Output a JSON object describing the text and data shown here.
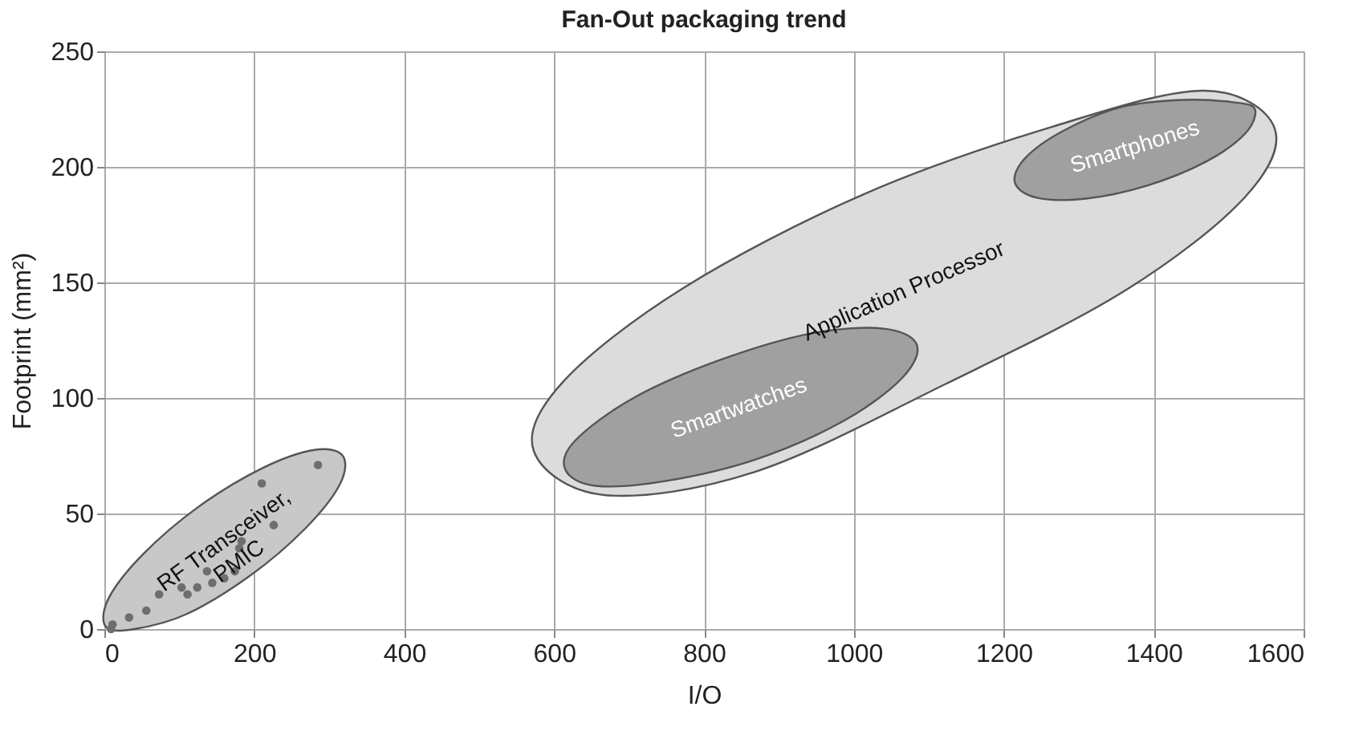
{
  "chart_data": {
    "type": "scatter",
    "title": "Fan-Out packaging trend",
    "xlabel": "I/O",
    "ylabel": "Footprint (mm²)",
    "xlim": [
      0,
      1600
    ],
    "xticks": [
      0,
      200,
      400,
      600,
      800,
      1000,
      1200,
      1400,
      1600
    ],
    "ylim": [
      0,
      250
    ],
    "yticks": [
      0,
      50,
      100,
      150,
      200,
      250
    ],
    "grid": true,
    "series": [
      {
        "name": "RF Transceiver,\nPMIC",
        "type": "area",
        "color": "#c8c8c8",
        "x": [
          318,
          314,
          268,
          194,
          110,
          40,
          2,
          6,
          52,
          126,
          210,
          280
        ],
        "values": [
          75,
          62.5,
          43.5,
          23,
          6.5,
          0,
          1,
          13.5,
          32.5,
          53,
          69.5,
          77.5
        ]
      },
      {
        "name": "Application Processor",
        "type": "area",
        "color": "#dcdcdc",
        "x": [
          1561,
          1522,
          1362,
          1122,
          868,
          667,
          573,
          612,
          772,
          1012,
          1266,
          1467
        ],
        "values": [
          217,
          187,
          146.5,
          106,
          68,
          58,
          77,
          107,
          147.5,
          188,
          217.5,
          233
        ]
      },
      {
        "name": "Smartwatches",
        "type": "area",
        "color": "#a0a0a0",
        "x": [
          1084,
          1064,
          986,
          870,
          748,
          655,
          615,
          628,
          706,
          822,
          944,
          1040
        ],
        "values": [
          123,
          108.5,
          90,
          73.5,
          64,
          62,
          69,
          81.5,
          100,
          116.5,
          128,
          130
        ]
      },
      {
        "name": "Smartphones",
        "type": "area",
        "color": "#a0a0a0",
        "x": [
          1535,
          1522,
          1470,
          1392,
          1310,
          1245,
          1215,
          1228,
          1280,
          1358,
          1440,
          1505
        ],
        "values": [
          225,
          214.4,
          202.3,
          192,
          186.3,
          186.6,
          193,
          203.6,
          215.7,
          226,
          229,
          228
        ]
      },
      {
        "color": "#6e6e6e",
        "marker": "circle",
        "x": [
          9,
          11,
          33,
          56,
          73,
          103,
          111,
          124,
          137,
          144,
          160,
          174,
          180,
          183,
          210,
          226,
          285
        ],
        "values": [
          0,
          2,
          5,
          8,
          15,
          18,
          15,
          18,
          25,
          20,
          22,
          25,
          35,
          38,
          63,
          45,
          71
        ]
      }
    ]
  }
}
